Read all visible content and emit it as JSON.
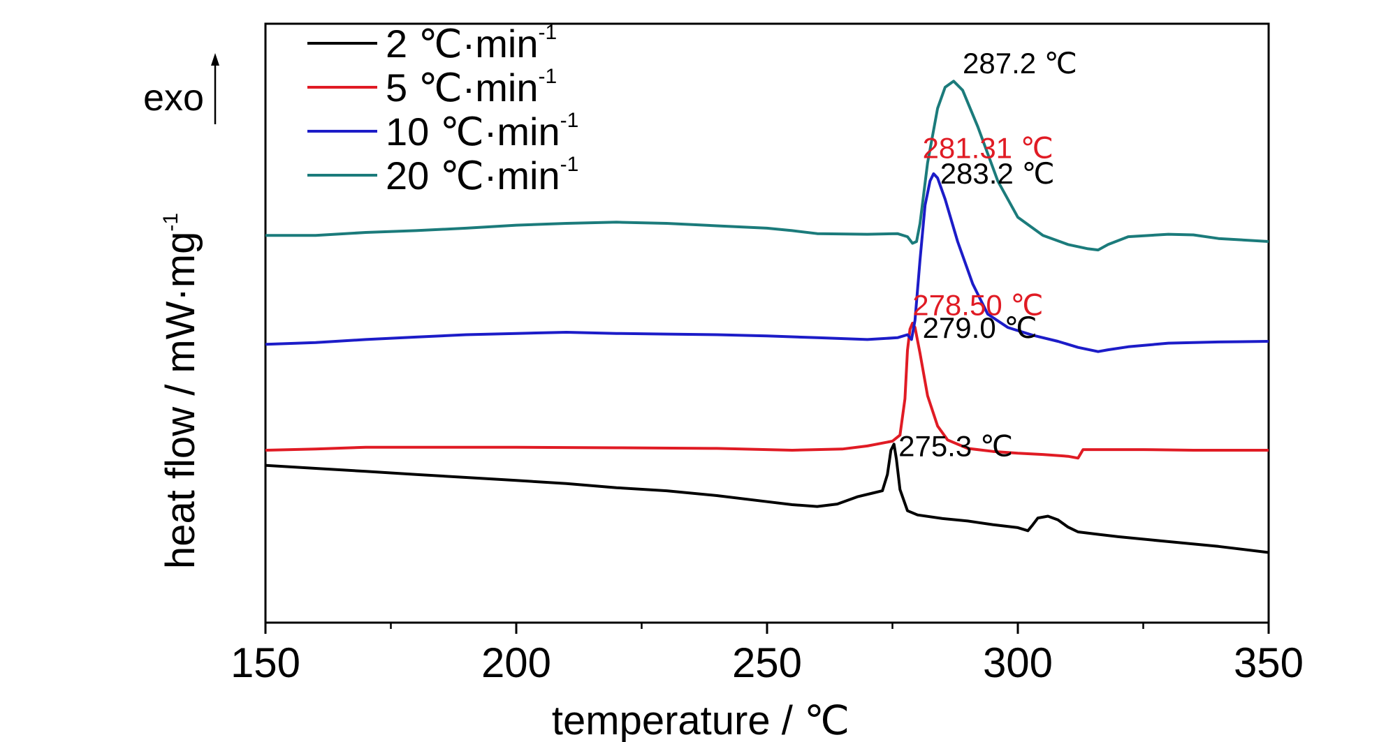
{
  "chart_data": {
    "type": "line",
    "xlabel": "temperature / ℃",
    "ylabel_main": "heat flow / mW·mg",
    "ylabel_sup": "-1",
    "xlim": [
      150,
      350
    ],
    "xticks": [
      "150",
      "200",
      "250",
      "300",
      "350"
    ],
    "y_axis_ticks": false,
    "grid": false,
    "legend_position": "top-left",
    "exo_label": "exo",
    "series": [
      {
        "name": "2 ℃·min",
        "name_sup": "-1",
        "color": "#000000",
        "points": [
          [
            150,
            0.36
          ],
          [
            160,
            0.355
          ],
          [
            170,
            0.35
          ],
          [
            180,
            0.345
          ],
          [
            190,
            0.34
          ],
          [
            200,
            0.335
          ],
          [
            210,
            0.33
          ],
          [
            220,
            0.323
          ],
          [
            230,
            0.318
          ],
          [
            240,
            0.31
          ],
          [
            250,
            0.3
          ],
          [
            255,
            0.295
          ],
          [
            260,
            0.292
          ],
          [
            264,
            0.296
          ],
          [
            268,
            0.308
          ],
          [
            271,
            0.314
          ],
          [
            273,
            0.318
          ],
          [
            274,
            0.345
          ],
          [
            274.7,
            0.385
          ],
          [
            275.3,
            0.395
          ],
          [
            275.8,
            0.37
          ],
          [
            276.5,
            0.32
          ],
          [
            278,
            0.285
          ],
          [
            280,
            0.278
          ],
          [
            285,
            0.272
          ],
          [
            290,
            0.268
          ],
          [
            295,
            0.262
          ],
          [
            300,
            0.257
          ],
          [
            302,
            0.252
          ],
          [
            303,
            0.262
          ],
          [
            304,
            0.273
          ],
          [
            306,
            0.276
          ],
          [
            308,
            0.27
          ],
          [
            310,
            0.258
          ],
          [
            312,
            0.25
          ],
          [
            316,
            0.246
          ],
          [
            320,
            0.242
          ],
          [
            330,
            0.234
          ],
          [
            340,
            0.226
          ],
          [
            350,
            0.216
          ]
        ]
      },
      {
        "name": "5 ℃·min",
        "name_sup": "-1",
        "color": "#e01b24",
        "points": [
          [
            150,
            0.385
          ],
          [
            160,
            0.387
          ],
          [
            170,
            0.39
          ],
          [
            180,
            0.39
          ],
          [
            200,
            0.39
          ],
          [
            220,
            0.389
          ],
          [
            240,
            0.388
          ],
          [
            255,
            0.385
          ],
          [
            265,
            0.387
          ],
          [
            270,
            0.392
          ],
          [
            275,
            0.4
          ],
          [
            276.5,
            0.41
          ],
          [
            277.5,
            0.47
          ],
          [
            278,
            0.55
          ],
          [
            278.5,
            0.585
          ],
          [
            279,
            0.595
          ],
          [
            279.5,
            0.588
          ],
          [
            280.5,
            0.545
          ],
          [
            282,
            0.475
          ],
          [
            284,
            0.425
          ],
          [
            286,
            0.402
          ],
          [
            290,
            0.388
          ],
          [
            295,
            0.383
          ],
          [
            300,
            0.38
          ],
          [
            305,
            0.378
          ],
          [
            310,
            0.375
          ],
          [
            312,
            0.372
          ],
          [
            313,
            0.386
          ],
          [
            316,
            0.386
          ],
          [
            325,
            0.386
          ],
          [
            335,
            0.385
          ],
          [
            350,
            0.385
          ]
        ]
      },
      {
        "name": "10 ℃·min",
        "name_sup": "-1",
        "color": "#1c1cc8",
        "points": [
          [
            150,
            0.56
          ],
          [
            160,
            0.563
          ],
          [
            170,
            0.568
          ],
          [
            180,
            0.572
          ],
          [
            190,
            0.576
          ],
          [
            200,
            0.578
          ],
          [
            210,
            0.58
          ],
          [
            220,
            0.578
          ],
          [
            230,
            0.577
          ],
          [
            240,
            0.576
          ],
          [
            250,
            0.574
          ],
          [
            260,
            0.571
          ],
          [
            270,
            0.568
          ],
          [
            276,
            0.571
          ],
          [
            278,
            0.576
          ],
          [
            278.8,
            0.568
          ],
          [
            279.5,
            0.6
          ],
          [
            280.5,
            0.7
          ],
          [
            281.5,
            0.79
          ],
          [
            282.5,
            0.83
          ],
          [
            283.2,
            0.842
          ],
          [
            284,
            0.835
          ],
          [
            285.5,
            0.8
          ],
          [
            288,
            0.73
          ],
          [
            291,
            0.66
          ],
          [
            294,
            0.61
          ],
          [
            298,
            0.588
          ],
          [
            303,
            0.575
          ],
          [
            308,
            0.565
          ],
          [
            312,
            0.555
          ],
          [
            316,
            0.548
          ],
          [
            318,
            0.551
          ],
          [
            322,
            0.556
          ],
          [
            330,
            0.562
          ],
          [
            340,
            0.564
          ],
          [
            350,
            0.565
          ]
        ]
      },
      {
        "name": "20 ℃·min",
        "name_sup": "-1",
        "color": "#1b7b7b",
        "points": [
          [
            150,
            0.74
          ],
          [
            160,
            0.74
          ],
          [
            170,
            0.745
          ],
          [
            180,
            0.748
          ],
          [
            190,
            0.752
          ],
          [
            200,
            0.757
          ],
          [
            210,
            0.76
          ],
          [
            220,
            0.762
          ],
          [
            230,
            0.76
          ],
          [
            240,
            0.756
          ],
          [
            250,
            0.752
          ],
          [
            255,
            0.748
          ],
          [
            260,
            0.743
          ],
          [
            270,
            0.742
          ],
          [
            276,
            0.743
          ],
          [
            278,
            0.738
          ],
          [
            279,
            0.727
          ],
          [
            279.8,
            0.73
          ],
          [
            280.5,
            0.76
          ],
          [
            282,
            0.86
          ],
          [
            284,
            0.95
          ],
          [
            285.5,
            0.985
          ],
          [
            287.2,
            0.995
          ],
          [
            289,
            0.98
          ],
          [
            292,
            0.92
          ],
          [
            296,
            0.83
          ],
          [
            300,
            0.77
          ],
          [
            305,
            0.74
          ],
          [
            310,
            0.725
          ],
          [
            314,
            0.718
          ],
          [
            316,
            0.716
          ],
          [
            318,
            0.725
          ],
          [
            322,
            0.738
          ],
          [
            330,
            0.742
          ],
          [
            335,
            0.741
          ],
          [
            340,
            0.735
          ],
          [
            350,
            0.73
          ]
        ]
      }
    ],
    "annotations": [
      {
        "text": "287.2 ℃",
        "x": 289,
        "y": 1.008,
        "color": "#000000"
      },
      {
        "text": "281.31 ℃",
        "x": 281,
        "y": 0.868,
        "color": "#e01b24"
      },
      {
        "text": "283.2 ℃",
        "x": 284.5,
        "y": 0.826,
        "color": "#000000"
      },
      {
        "text": "278.50 ℃",
        "x": 279,
        "y": 0.608,
        "color": "#e01b24"
      },
      {
        "text": "279.0 ℃",
        "x": 281,
        "y": 0.571,
        "color": "#000000"
      },
      {
        "text": "275.3 ℃",
        "x": 276.2,
        "y": 0.375,
        "color": "#000000"
      }
    ]
  }
}
